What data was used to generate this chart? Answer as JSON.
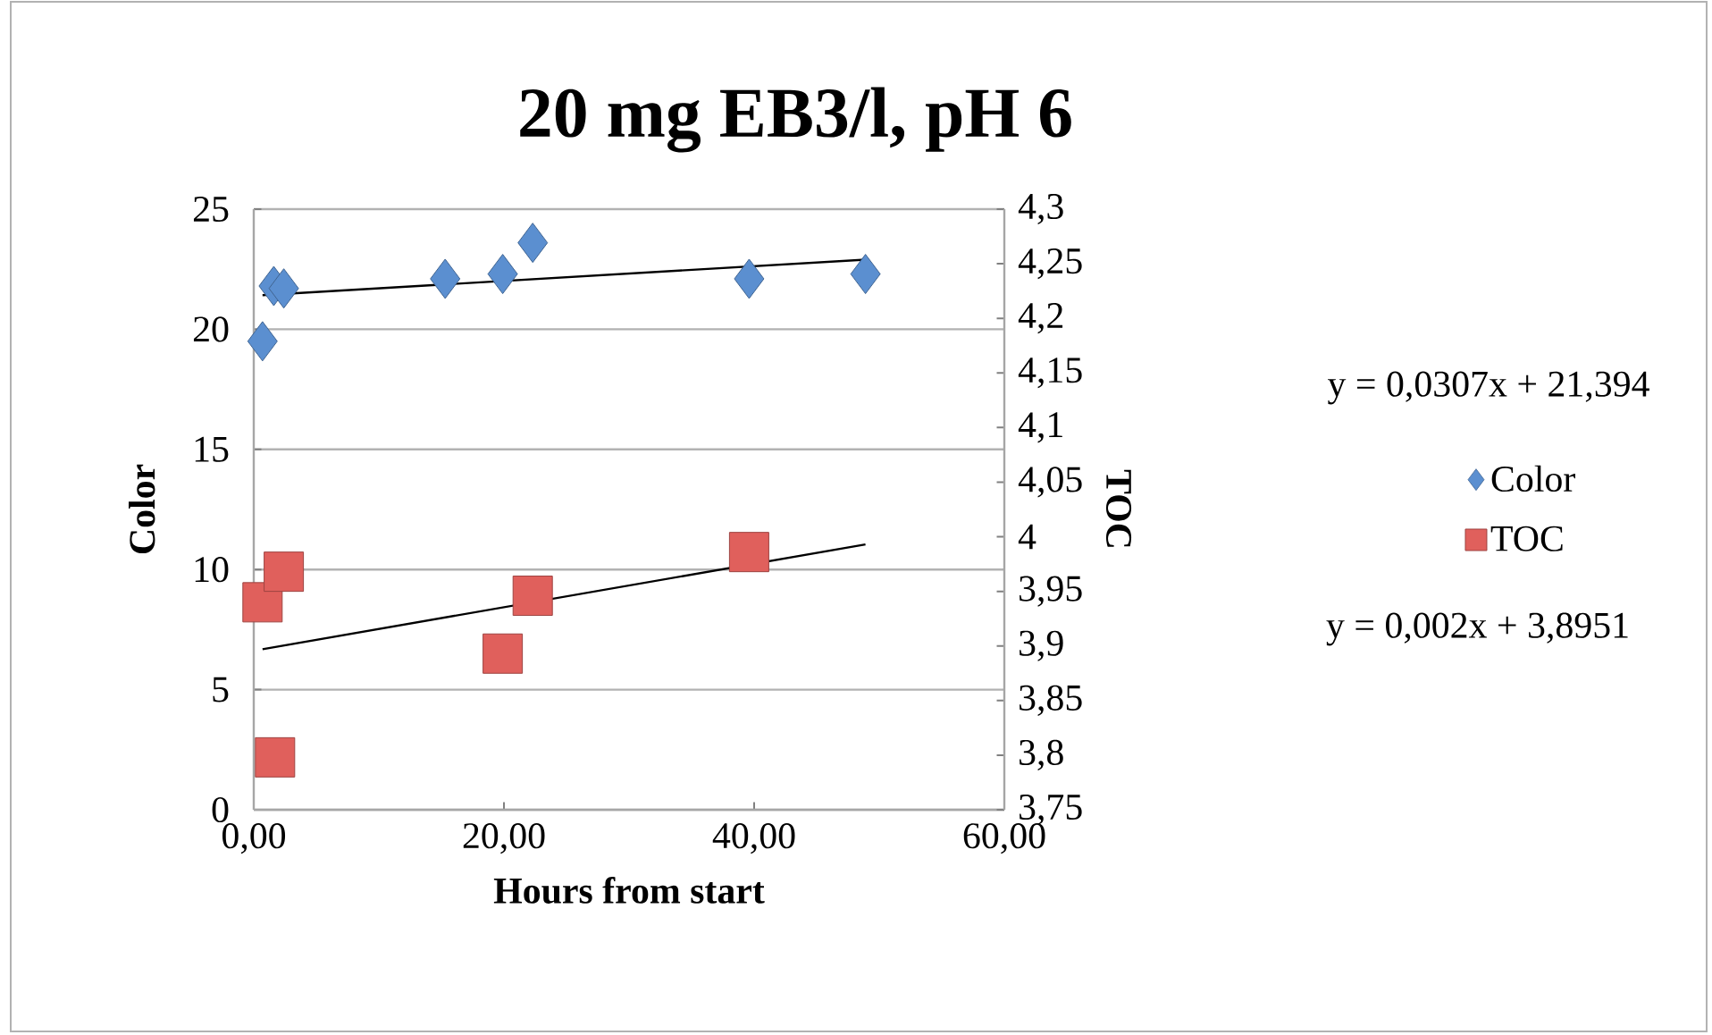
{
  "chart_data": {
    "type": "scatter",
    "title": "20 mg EB3/l, pH 6",
    "xlabel": "Hours from start",
    "ylabel": "Color",
    "y2label": "TOC",
    "xlim": [
      0,
      60
    ],
    "xticks": [
      {
        "value": 0,
        "label": "0,00"
      },
      {
        "value": 20,
        "label": "20,00"
      },
      {
        "value": 40,
        "label": "40,00"
      },
      {
        "value": 60,
        "label": "60,00"
      }
    ],
    "ylim": [
      0,
      25
    ],
    "yticks": [
      0,
      5,
      10,
      15,
      20,
      25
    ],
    "y2lim": [
      3.75,
      4.3
    ],
    "y2ticks": [
      {
        "value": 3.75,
        "label": "3,75"
      },
      {
        "value": 3.8,
        "label": "3,8"
      },
      {
        "value": 3.85,
        "label": "3,85"
      },
      {
        "value": 3.9,
        "label": "3,9"
      },
      {
        "value": 3.95,
        "label": "3,95"
      },
      {
        "value": 4,
        "label": "4"
      },
      {
        "value": 4.05,
        "label": "4,05"
      },
      {
        "value": 4.1,
        "label": "4,1"
      },
      {
        "value": 4.15,
        "label": "4,15"
      },
      {
        "value": 4.2,
        "label": "4,2"
      },
      {
        "value": 4.25,
        "label": "4,25"
      },
      {
        "value": 4.3,
        "label": "4,3"
      }
    ],
    "grid": "y",
    "legend": "right",
    "annotations": [
      "y = 0,0307x + 21,394",
      "y = 0,002x + 3,8951"
    ],
    "series": [
      {
        "name": "Color",
        "marker": "diamond",
        "color": "#5b8fd0",
        "x": [
          0.7,
          1.6,
          2.4,
          15.3,
          19.9,
          22.3,
          39.6,
          48.9
        ],
        "values": [
          19.5,
          21.8,
          21.7,
          22.1,
          22.3,
          23.6,
          22.1,
          22.3
        ]
      },
      {
        "name": "TOC",
        "marker": "square",
        "axis": "y2",
        "color": "#e0605c",
        "x": [
          0.7,
          1.7,
          2.4,
          19.9,
          22.3,
          39.6
        ],
        "values": [
          3.94,
          3.798,
          3.968,
          3.893,
          3.946,
          3.986
        ]
      },
      {
        "type": "line",
        "marker": "none",
        "color": "#000000",
        "x": [
          0.7,
          48.9
        ],
        "values": [
          21.42,
          22.9
        ]
      },
      {
        "type": "line",
        "marker": "none",
        "axis": "y2",
        "color": "#000000",
        "x": [
          0.7,
          48.9
        ],
        "values": [
          3.897,
          3.993
        ]
      }
    ]
  }
}
